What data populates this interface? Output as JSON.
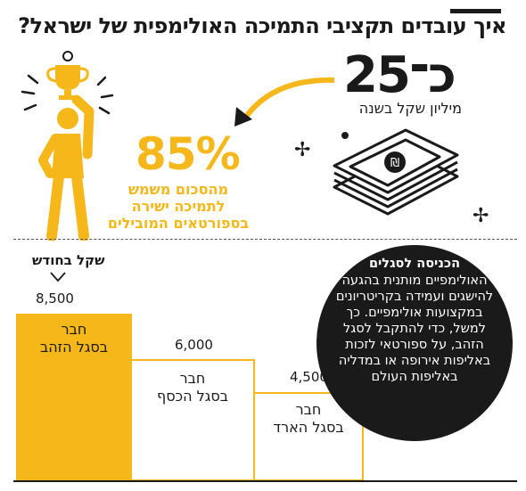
{
  "header": {
    "title": "איך עובדים תקציבי התמיכה האולימפית של ישראל?"
  },
  "budget": {
    "approx_prefix": "כ־",
    "amount": "25",
    "unit": "מיליון שקל בשנה"
  },
  "share": {
    "percent": "85%",
    "description": "מהסכום משמש לתמיכה ישירה בספורטאים המובילים"
  },
  "chart_data": {
    "type": "bar",
    "unit_label": "שקל בחודש",
    "categories": [
      "חבר בסגל הזהב",
      "חבר בסגל הכסף",
      "חבר בסגל הארד"
    ],
    "values": [
      8500,
      6000,
      4500
    ],
    "value_labels": [
      "8,500",
      "6,000",
      "4,500"
    ],
    "category_lines": [
      [
        "חבר",
        "בסגל הזהב"
      ],
      [
        "חבר",
        "בסגל הכסף"
      ],
      [
        "חבר",
        "בסגל הארד"
      ]
    ]
  },
  "entry": {
    "title": "הכניסה לסגלים",
    "body": "האולימפיים מותנית בהגעה להישגים ועמידה בקריטריונים במקצועות אולימפיים. כך למשל, כדי להתקבל לסגל הזהב, על ספורטאי לזכות באליפות אירופה או במדליה באליפות העולם"
  },
  "colors": {
    "accent": "#f5b719",
    "dark": "#1a1a1a"
  }
}
